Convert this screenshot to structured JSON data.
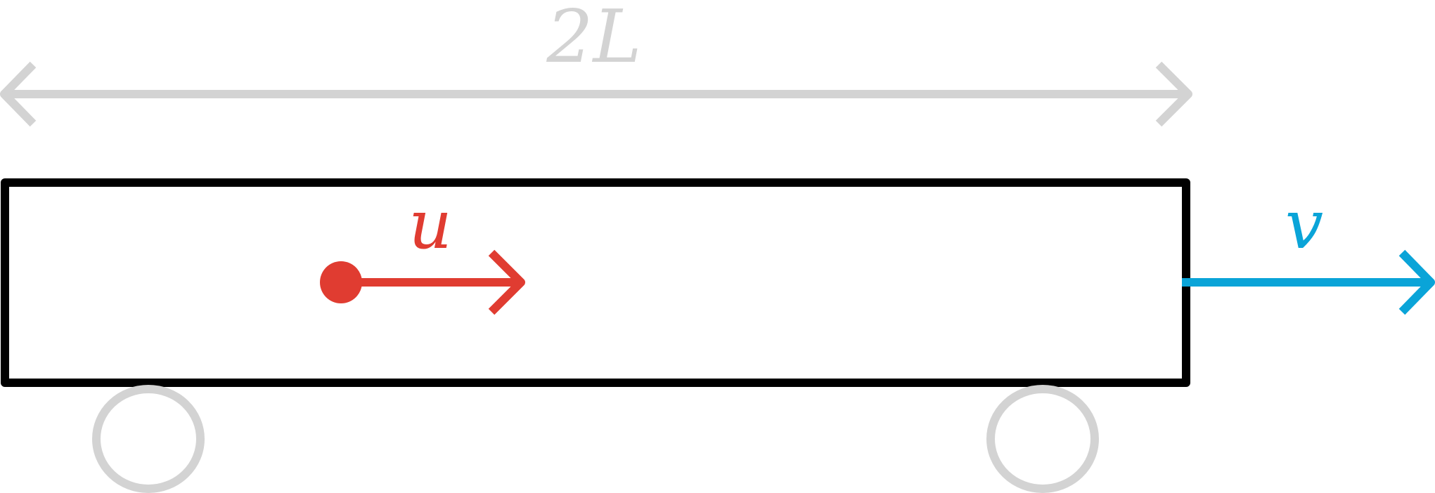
{
  "labels": {
    "length": "2L",
    "particle_velocity": "u",
    "cart_velocity": "v"
  },
  "colors": {
    "dimension": "#d3d3d3",
    "cart_outline": "#000000",
    "wheel": "#d3d3d3",
    "particle": "#e03c31",
    "cart_velocity": "#0aa4d8"
  },
  "icons": {
    "particle": "filled-circle",
    "wheel": "circle-outline",
    "arrow": "chevron-arrowhead"
  }
}
